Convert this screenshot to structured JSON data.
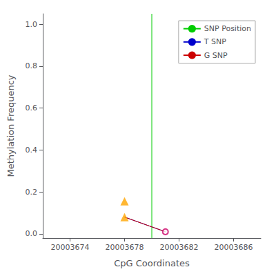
{
  "chart_data": {
    "type": "line",
    "xlabel": "CpG Coordinates",
    "ylabel": "Methylation Frequency",
    "xlim": [
      20003672,
      20003688
    ],
    "ylim": [
      -0.02,
      1.05
    ],
    "xticks": [
      20003674,
      20003678,
      20003682,
      20003686
    ],
    "yticks": [
      {
        "value": 0.0,
        "label": "0.0"
      },
      0.2,
      0.4,
      0.6,
      0.8,
      {
        "value": 1.0,
        "label": "1.0"
      }
    ],
    "grid": false,
    "legend": "upper right",
    "series": [
      {
        "name": "SNP Position",
        "type": "vline",
        "color": "#00cc00",
        "x": [
          20003680
        ]
      },
      {
        "name": "T SNP",
        "type": "line",
        "color": "#0000cc",
        "x": [
          20003678,
          20003681
        ],
        "values": [
          0.08,
          0.01
        ]
      },
      {
        "name": "G SNP",
        "type": "line",
        "color": "#cc0000",
        "x": [
          20003678,
          20003681
        ],
        "values": [
          0.08,
          0.01
        ]
      },
      {
        "type": "scatter",
        "marker": "triangle",
        "color": "#FFA500",
        "x": [
          20003678,
          20003678
        ],
        "values": [
          0.155,
          0.08
        ]
      },
      {
        "type": "scatter",
        "marker": "open_circle",
        "color": "#cc0066",
        "x": [
          20003681
        ],
        "values": [
          0.01
        ]
      }
    ]
  }
}
